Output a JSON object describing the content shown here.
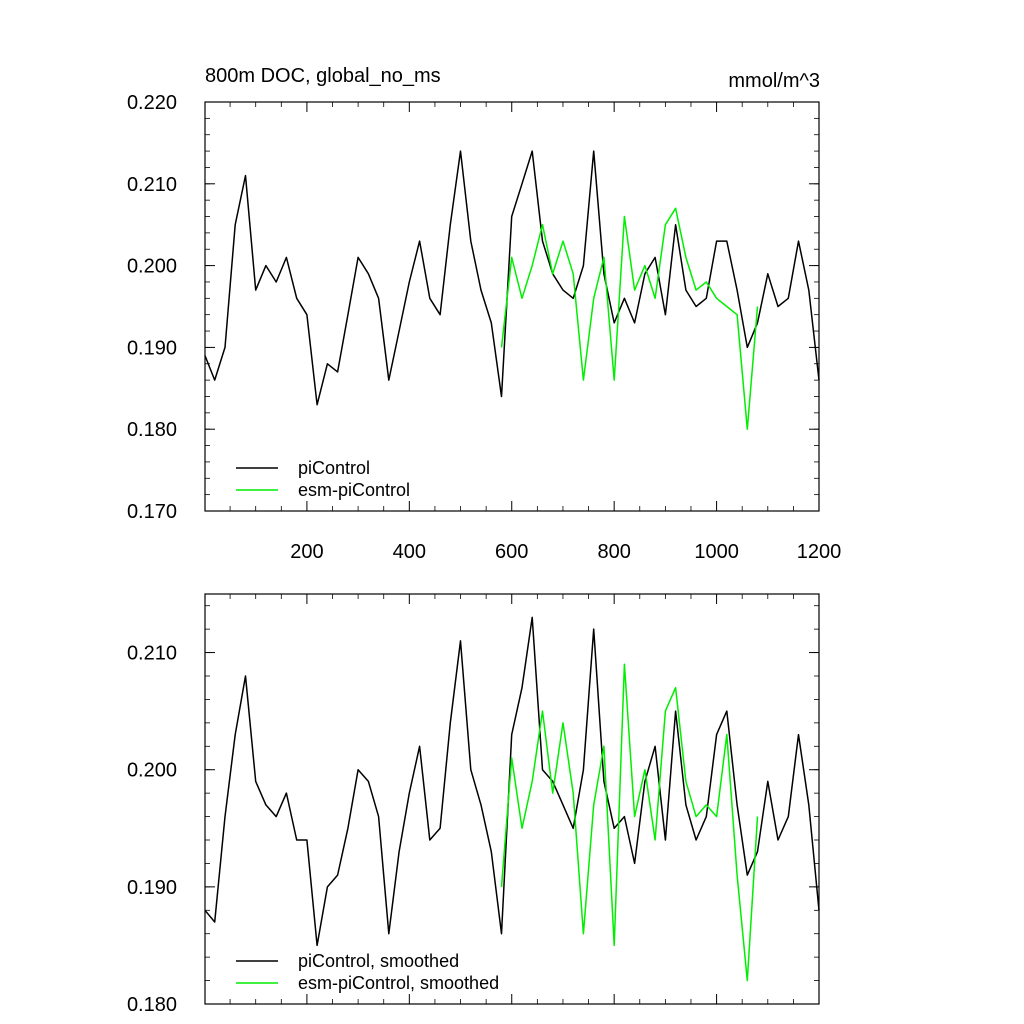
{
  "chart_data": [
    {
      "type": "line",
      "title_left": "800m DOC, global_no_ms",
      "title_right": "mmol/m^3",
      "xlabel": "",
      "ylabel": "",
      "xlim": [
        1,
        1200
      ],
      "ylim": [
        0.17,
        0.22
      ],
      "x_ticks": [
        200,
        400,
        600,
        800,
        1000,
        1200
      ],
      "x_tick_labels": [
        "200",
        "400",
        "600",
        "800",
        "1000",
        "1200"
      ],
      "y_ticks": [
        0.17,
        0.18,
        0.19,
        0.2,
        0.21,
        0.22
      ],
      "y_tick_labels": [
        "0.170",
        "0.180",
        "0.190",
        "0.200",
        "0.210",
        "0.220"
      ],
      "grid": false,
      "legend_position": "bottom-left",
      "series": [
        {
          "name": "piControl",
          "color": "#000000",
          "x": [
            1,
            20,
            40,
            60,
            80,
            100,
            120,
            140,
            160,
            180,
            200,
            220,
            240,
            260,
            280,
            300,
            320,
            340,
            360,
            380,
            400,
            420,
            440,
            460,
            480,
            500,
            520,
            540,
            560,
            580,
            600,
            620,
            640,
            660,
            680,
            700,
            720,
            740,
            760,
            780,
            800,
            820,
            840,
            860,
            880,
            900,
            920,
            940,
            960,
            980,
            1000,
            1020,
            1040,
            1060,
            1080,
            1100,
            1120,
            1140,
            1160,
            1180,
            1200
          ],
          "y": [
            0.189,
            0.186,
            0.19,
            0.205,
            0.211,
            0.197,
            0.2,
            0.198,
            0.201,
            0.196,
            0.194,
            0.183,
            0.188,
            0.187,
            0.194,
            0.201,
            0.199,
            0.196,
            0.186,
            0.192,
            0.198,
            0.203,
            0.196,
            0.194,
            0.205,
            0.214,
            0.203,
            0.197,
            0.193,
            0.184,
            0.206,
            0.21,
            0.214,
            0.203,
            0.199,
            0.197,
            0.196,
            0.2,
            0.214,
            0.199,
            0.193,
            0.196,
            0.193,
            0.199,
            0.201,
            0.194,
            0.205,
            0.197,
            0.195,
            0.196,
            0.203,
            0.203,
            0.197,
            0.19,
            0.193,
            0.199,
            0.195,
            0.196,
            0.203,
            0.197,
            0.186
          ]
        },
        {
          "name": "esm-piControl",
          "color": "#00ee00",
          "x": [
            580,
            600,
            620,
            640,
            660,
            680,
            700,
            720,
            740,
            760,
            780,
            800,
            820,
            840,
            860,
            880,
            900,
            920,
            940,
            960,
            980,
            1000,
            1020,
            1040,
            1060,
            1080
          ],
          "y": [
            0.19,
            0.201,
            0.196,
            0.2,
            0.205,
            0.199,
            0.203,
            0.199,
            0.186,
            0.196,
            0.201,
            0.186,
            0.206,
            0.197,
            0.2,
            0.196,
            0.205,
            0.207,
            0.201,
            0.197,
            0.198,
            0.196,
            0.195,
            0.194,
            0.18,
            0.195
          ]
        }
      ]
    },
    {
      "type": "line",
      "xlabel": "",
      "ylabel": "",
      "xlim": [
        1,
        1200
      ],
      "ylim": [
        0.18,
        0.215
      ],
      "x_ticks": [
        200,
        400,
        600,
        800,
        1000,
        1200
      ],
      "y_ticks": [
        0.18,
        0.19,
        0.2,
        0.21
      ],
      "y_tick_labels": [
        "0.180",
        "0.190",
        "0.200",
        "0.210"
      ],
      "grid": false,
      "legend_position": "bottom-left",
      "series": [
        {
          "name": "piControl, smoothed",
          "color": "#000000",
          "x": [
            1,
            20,
            40,
            60,
            80,
            100,
            120,
            140,
            160,
            180,
            200,
            220,
            240,
            260,
            280,
            300,
            320,
            340,
            360,
            380,
            400,
            420,
            440,
            460,
            480,
            500,
            520,
            540,
            560,
            580,
            600,
            620,
            640,
            660,
            680,
            700,
            720,
            740,
            760,
            780,
            800,
            820,
            840,
            860,
            880,
            900,
            920,
            940,
            960,
            980,
            1000,
            1020,
            1040,
            1060,
            1080,
            1100,
            1120,
            1140,
            1160,
            1180,
            1200
          ],
          "y": [
            0.188,
            0.187,
            0.196,
            0.203,
            0.208,
            0.199,
            0.197,
            0.196,
            0.198,
            0.194,
            0.194,
            0.185,
            0.19,
            0.191,
            0.195,
            0.2,
            0.199,
            0.196,
            0.186,
            0.193,
            0.198,
            0.202,
            0.194,
            0.195,
            0.204,
            0.211,
            0.2,
            0.197,
            0.193,
            0.186,
            0.203,
            0.207,
            0.213,
            0.2,
            0.199,
            0.197,
            0.195,
            0.2,
            0.212,
            0.199,
            0.195,
            0.196,
            0.192,
            0.199,
            0.202,
            0.194,
            0.205,
            0.197,
            0.194,
            0.196,
            0.203,
            0.205,
            0.197,
            0.191,
            0.193,
            0.199,
            0.194,
            0.196,
            0.203,
            0.197,
            0.188
          ]
        },
        {
          "name": "esm-piControl, smoothed",
          "color": "#00ee00",
          "x": [
            580,
            600,
            620,
            640,
            660,
            680,
            700,
            720,
            740,
            760,
            780,
            800,
            820,
            840,
            860,
            880,
            900,
            920,
            940,
            960,
            980,
            1000,
            1020,
            1040,
            1060,
            1080
          ],
          "y": [
            0.19,
            0.201,
            0.195,
            0.199,
            0.205,
            0.198,
            0.204,
            0.198,
            0.186,
            0.197,
            0.202,
            0.185,
            0.209,
            0.196,
            0.2,
            0.194,
            0.205,
            0.207,
            0.199,
            0.196,
            0.197,
            0.196,
            0.203,
            0.191,
            0.182,
            0.196
          ]
        }
      ]
    }
  ]
}
